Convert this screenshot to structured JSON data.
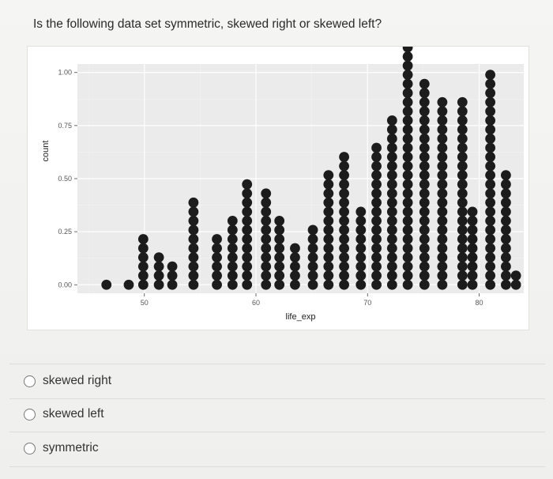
{
  "question": {
    "text": "Is the following data set symmetric, skewed right or skewed left?"
  },
  "options": [
    {
      "label": "skewed right",
      "selected": false
    },
    {
      "label": "skewed left",
      "selected": false
    },
    {
      "label": "symmetric",
      "selected": false
    }
  ],
  "chart_data": {
    "type": "scatter",
    "subtype": "dotplot",
    "title": "",
    "xlabel": "life_exp",
    "ylabel": "count",
    "xticks": [
      50,
      60,
      70,
      80
    ],
    "yticks": [
      "0.00",
      "0.25",
      "0.50",
      "0.75",
      "1.00"
    ],
    "ytick_values": [
      0,
      0.25,
      0.5,
      0.75,
      1
    ],
    "xlim": [
      44,
      84
    ],
    "ylim": [
      -0.04,
      1.04
    ],
    "grid": true,
    "legend": "none",
    "dot_color": "#1c1c1c",
    "panel_background": "#ebebeb",
    "columns": [
      {
        "x": 46.6,
        "count": 1
      },
      {
        "x": 48.6,
        "count": 1
      },
      {
        "x": 49.9,
        "count": 6
      },
      {
        "x": 51.3,
        "count": 4
      },
      {
        "x": 52.5,
        "count": 3
      },
      {
        "x": 54.4,
        "count": 10
      },
      {
        "x": 56.5,
        "count": 6
      },
      {
        "x": 57.9,
        "count": 8
      },
      {
        "x": 59.2,
        "count": 12
      },
      {
        "x": 60.9,
        "count": 11
      },
      {
        "x": 62.1,
        "count": 8
      },
      {
        "x": 63.5,
        "count": 5
      },
      {
        "x": 65.1,
        "count": 7
      },
      {
        "x": 66.5,
        "count": 13
      },
      {
        "x": 67.9,
        "count": 15
      },
      {
        "x": 69.4,
        "count": 9
      },
      {
        "x": 70.8,
        "count": 16
      },
      {
        "x": 72.2,
        "count": 19
      },
      {
        "x": 73.6,
        "count": 29
      },
      {
        "x": 75.1,
        "count": 23
      },
      {
        "x": 76.7,
        "count": 21
      },
      {
        "x": 78.5,
        "count": 21
      },
      {
        "x": 79.4,
        "count": 9
      },
      {
        "x": 81.0,
        "count": 24
      },
      {
        "x": 82.4,
        "count": 13
      },
      {
        "x": 83.3,
        "count": 2
      }
    ]
  }
}
